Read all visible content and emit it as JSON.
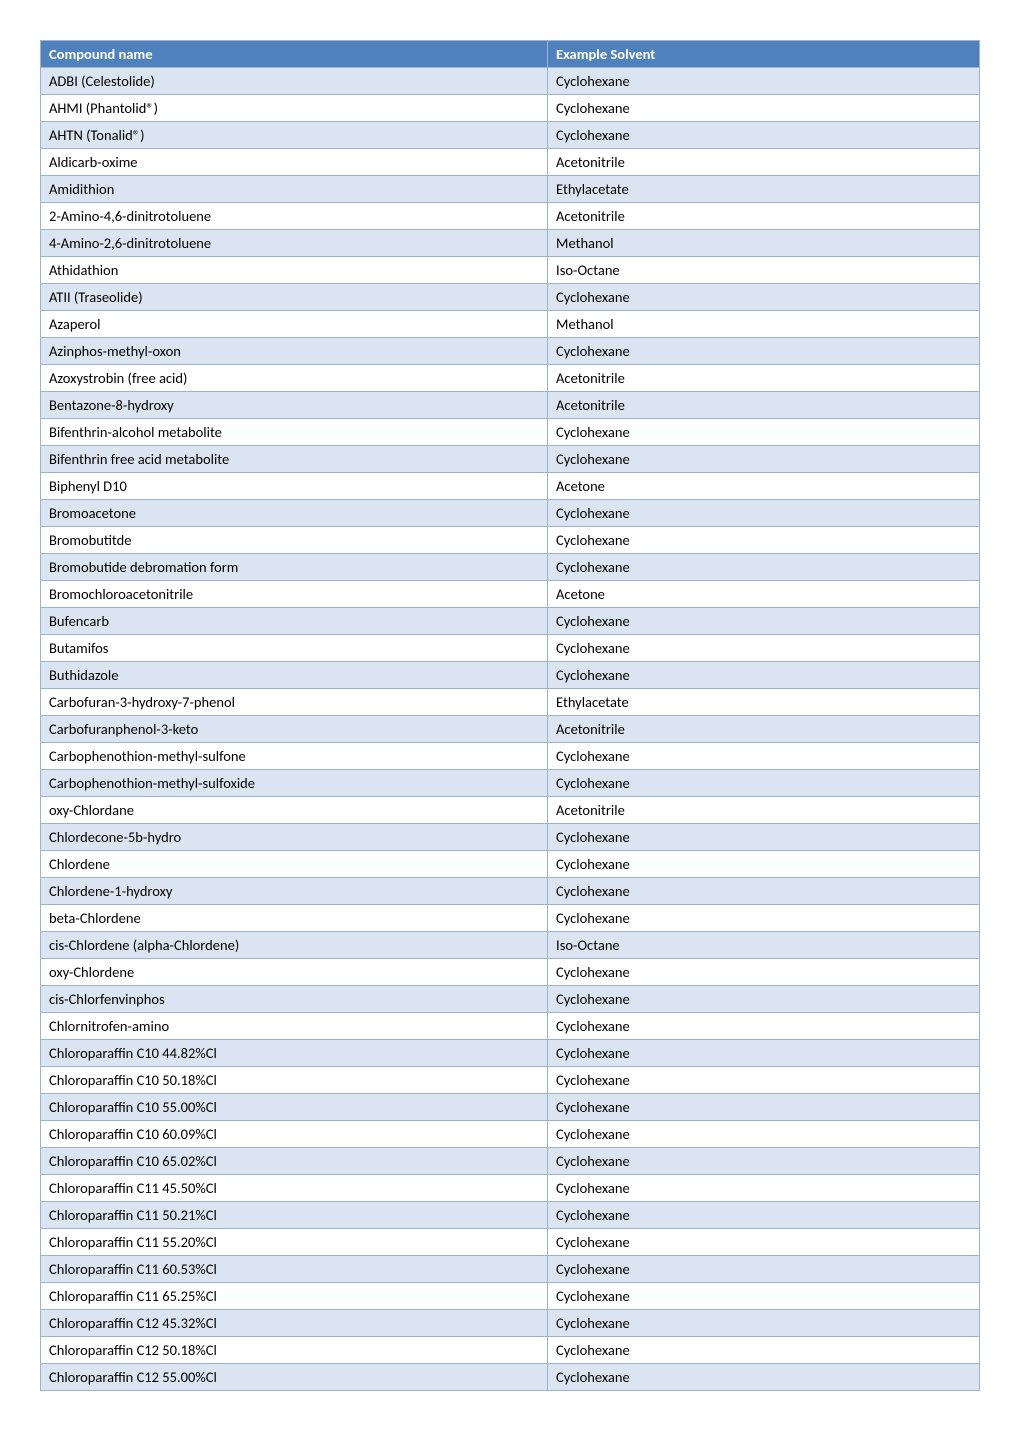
{
  "table": {
    "columns": [
      "Compound name",
      "Example Solvent"
    ],
    "rows": [
      [
        "ADBI (Celestolide)",
        "Cyclohexane"
      ],
      [
        "AHMI (Phantolid®)",
        "Cyclohexane"
      ],
      [
        "AHTN (Tonalid®)",
        "Cyclohexane"
      ],
      [
        "Aldicarb-oxime",
        "Acetonitrile"
      ],
      [
        "Amidithion",
        "Ethylacetate"
      ],
      [
        "2-Amino-4,6-dinitrotoluene",
        "Acetonitrile"
      ],
      [
        "4-Amino-2,6-dinitrotoluene",
        "Methanol"
      ],
      [
        "Athidathion",
        "Iso-Octane"
      ],
      [
        "ATII (Traseolide)",
        "Cyclohexane"
      ],
      [
        "Azaperol",
        "Methanol"
      ],
      [
        "Azinphos-methyl-oxon",
        "Cyclohexane"
      ],
      [
        "Azoxystrobin (free acid)",
        "Acetonitrile"
      ],
      [
        "Bentazone-8-hydroxy",
        "Acetonitrile"
      ],
      [
        "Bifenthrin-alcohol metabolite",
        "Cyclohexane"
      ],
      [
        "Bifenthrin free acid metabolite",
        "Cyclohexane"
      ],
      [
        "Biphenyl D10",
        "Acetone"
      ],
      [
        "Bromoacetone",
        "Cyclohexane"
      ],
      [
        "Bromobutitde",
        "Cyclohexane"
      ],
      [
        "Bromobutide debromation form",
        "Cyclohexane"
      ],
      [
        "Bromochloroacetonitrile",
        "Acetone"
      ],
      [
        "Bufencarb",
        "Cyclohexane"
      ],
      [
        "Butamifos",
        "Cyclohexane"
      ],
      [
        "Buthidazole",
        "Cyclohexane"
      ],
      [
        "Carbofuran-3-hydroxy-7-phenol",
        "Ethylacetate"
      ],
      [
        "Carbofuranphenol-3-keto",
        "Acetonitrile"
      ],
      [
        "Carbophenothion-methyl-sulfone",
        "Cyclohexane"
      ],
      [
        "Carbophenothion-methyl-sulfoxide",
        "Cyclohexane"
      ],
      [
        "oxy-Chlordane",
        "Acetonitrile"
      ],
      [
        "Chlordecone-5b-hydro",
        "Cyclohexane"
      ],
      [
        "Chlordene",
        "Cyclohexane"
      ],
      [
        "Chlordene-1-hydroxy",
        "Cyclohexane"
      ],
      [
        "beta-Chlordene",
        "Cyclohexane"
      ],
      [
        "cis-Chlordene (alpha-Chlordene)",
        "Iso-Octane"
      ],
      [
        "oxy-Chlordene",
        "Cyclohexane"
      ],
      [
        "cis-Chlorfenvinphos",
        "Cyclohexane"
      ],
      [
        "Chlornitrofen-amino",
        "Cyclohexane"
      ],
      [
        "Chloroparaffin C10  44.82%Cl",
        "Cyclohexane"
      ],
      [
        "Chloroparaffin C10  50.18%Cl",
        "Cyclohexane"
      ],
      [
        "Chloroparaffin C10  55.00%Cl",
        "Cyclohexane"
      ],
      [
        "Chloroparaffin C10  60.09%Cl",
        "Cyclohexane"
      ],
      [
        "Chloroparaffin C10  65.02%Cl",
        "Cyclohexane"
      ],
      [
        "Chloroparaffin C11  45.50%Cl",
        "Cyclohexane"
      ],
      [
        "Chloroparaffin C11  50.21%Cl",
        "Cyclohexane"
      ],
      [
        "Chloroparaffin C11  55.20%Cl",
        "Cyclohexane"
      ],
      [
        "Chloroparaffin C11  60.53%Cl",
        "Cyclohexane"
      ],
      [
        "Chloroparaffin C11  65.25%Cl",
        "Cyclohexane"
      ],
      [
        "Chloroparaffin C12  45.32%Cl",
        "Cyclohexane"
      ],
      [
        "Chloroparaffin C12  50.18%Cl",
        "Cyclohexane"
      ],
      [
        "Chloroparaffin C12  55.00%Cl",
        "Cyclohexane"
      ]
    ],
    "header_bg": "#4f81bd",
    "header_fg": "#ffffff",
    "row_odd_bg": "#dbe5f1",
    "row_even_bg": "#ffffff",
    "border_color": "#9bb3d0",
    "font_family": "Calibri",
    "font_size_pt": 11
  }
}
